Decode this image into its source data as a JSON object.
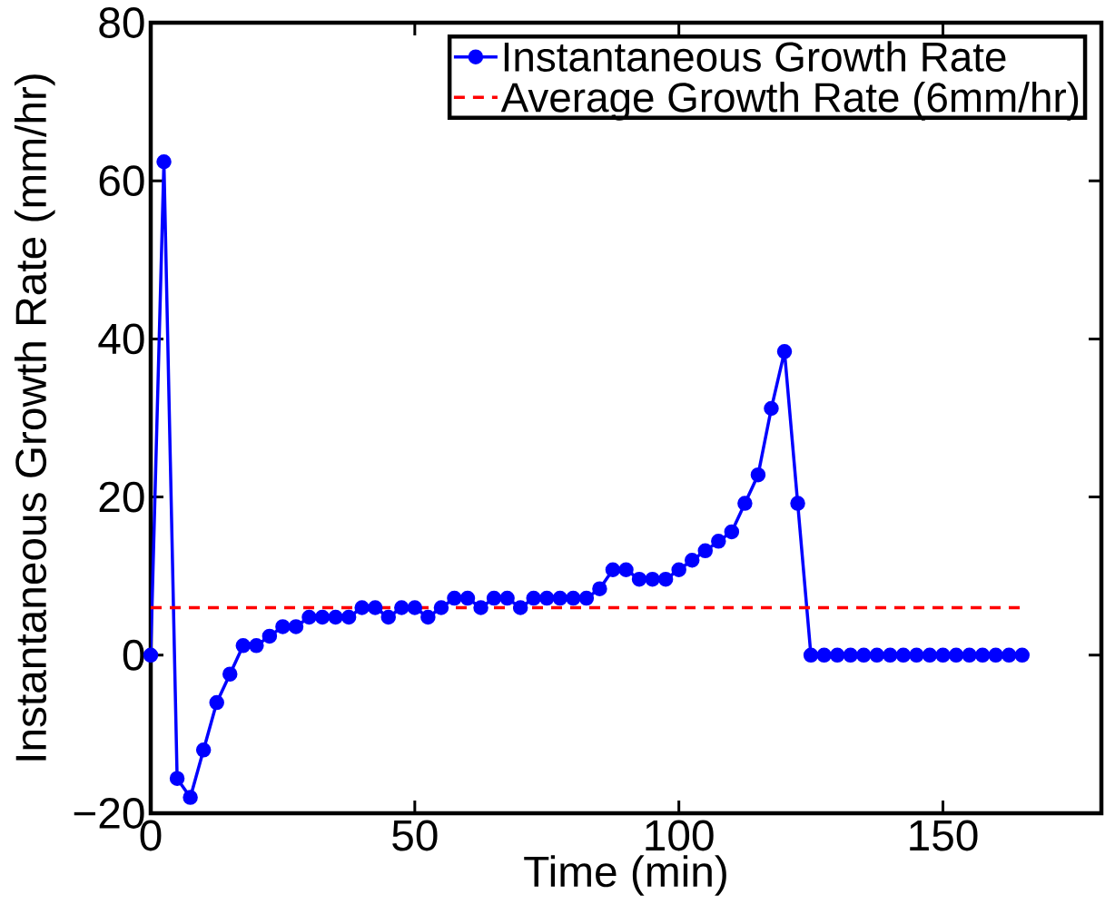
{
  "chart_data": {
    "type": "line",
    "xlabel": "Time (min)",
    "ylabel": "Instantaneous Growth Rate (mm/hr)",
    "x": [
      0,
      2.5,
      5,
      7.5,
      10,
      12.5,
      15,
      17.5,
      20,
      22.5,
      25,
      27.5,
      30,
      32.5,
      35,
      37.5,
      40,
      42.5,
      45,
      47.5,
      50,
      52.5,
      55,
      57.5,
      60,
      62.5,
      65,
      67.5,
      70,
      72.5,
      75,
      77.5,
      80,
      82.5,
      85,
      87.5,
      90,
      92.5,
      95,
      97.5,
      100,
      102.5,
      105,
      107.5,
      110,
      112.5,
      115,
      117.5,
      120,
      122.5,
      125,
      127.5,
      130,
      132.5,
      135,
      137.5,
      140,
      142.5,
      145,
      147.5,
      150,
      152.5,
      155,
      157.5,
      160,
      162.5,
      165
    ],
    "series": [
      {
        "name": "Instantaneous Growth Rate",
        "color": "#0000ff",
        "values": [
          0,
          62.4,
          -15.6,
          -18.0,
          -12.0,
          -6.0,
          -2.4,
          1.2,
          1.2,
          2.4,
          3.6,
          3.6,
          4.8,
          4.8,
          4.8,
          4.8,
          6.0,
          6.0,
          4.8,
          6.0,
          6.0,
          4.8,
          6.0,
          7.2,
          7.2,
          6.0,
          7.2,
          7.2,
          6.0,
          7.2,
          7.2,
          7.2,
          7.2,
          7.2,
          8.4,
          10.8,
          10.8,
          9.6,
          9.6,
          9.6,
          10.8,
          12.0,
          13.2,
          14.4,
          15.6,
          19.2,
          22.8,
          31.2,
          38.4,
          19.2,
          0,
          0,
          0,
          0,
          0,
          0,
          0,
          0,
          0,
          0,
          0,
          0,
          0,
          0,
          0,
          0,
          0
        ]
      }
    ],
    "ref_lines": [
      {
        "axis": "y",
        "value": 6,
        "label": "Average Growth Rate (6mm/hr)",
        "color": "#ff0000",
        "line_style": "dashed"
      }
    ],
    "xlim": [
      0,
      180
    ],
    "ylim": [
      -20,
      80
    ],
    "xticks": [
      0,
      50,
      100,
      150
    ],
    "yticks": [
      {
        "value": -20,
        "label": "−20"
      },
      0,
      20,
      40,
      60,
      80
    ],
    "legend": "top right",
    "marker": "circle",
    "line_style": "solid",
    "grid": false
  }
}
